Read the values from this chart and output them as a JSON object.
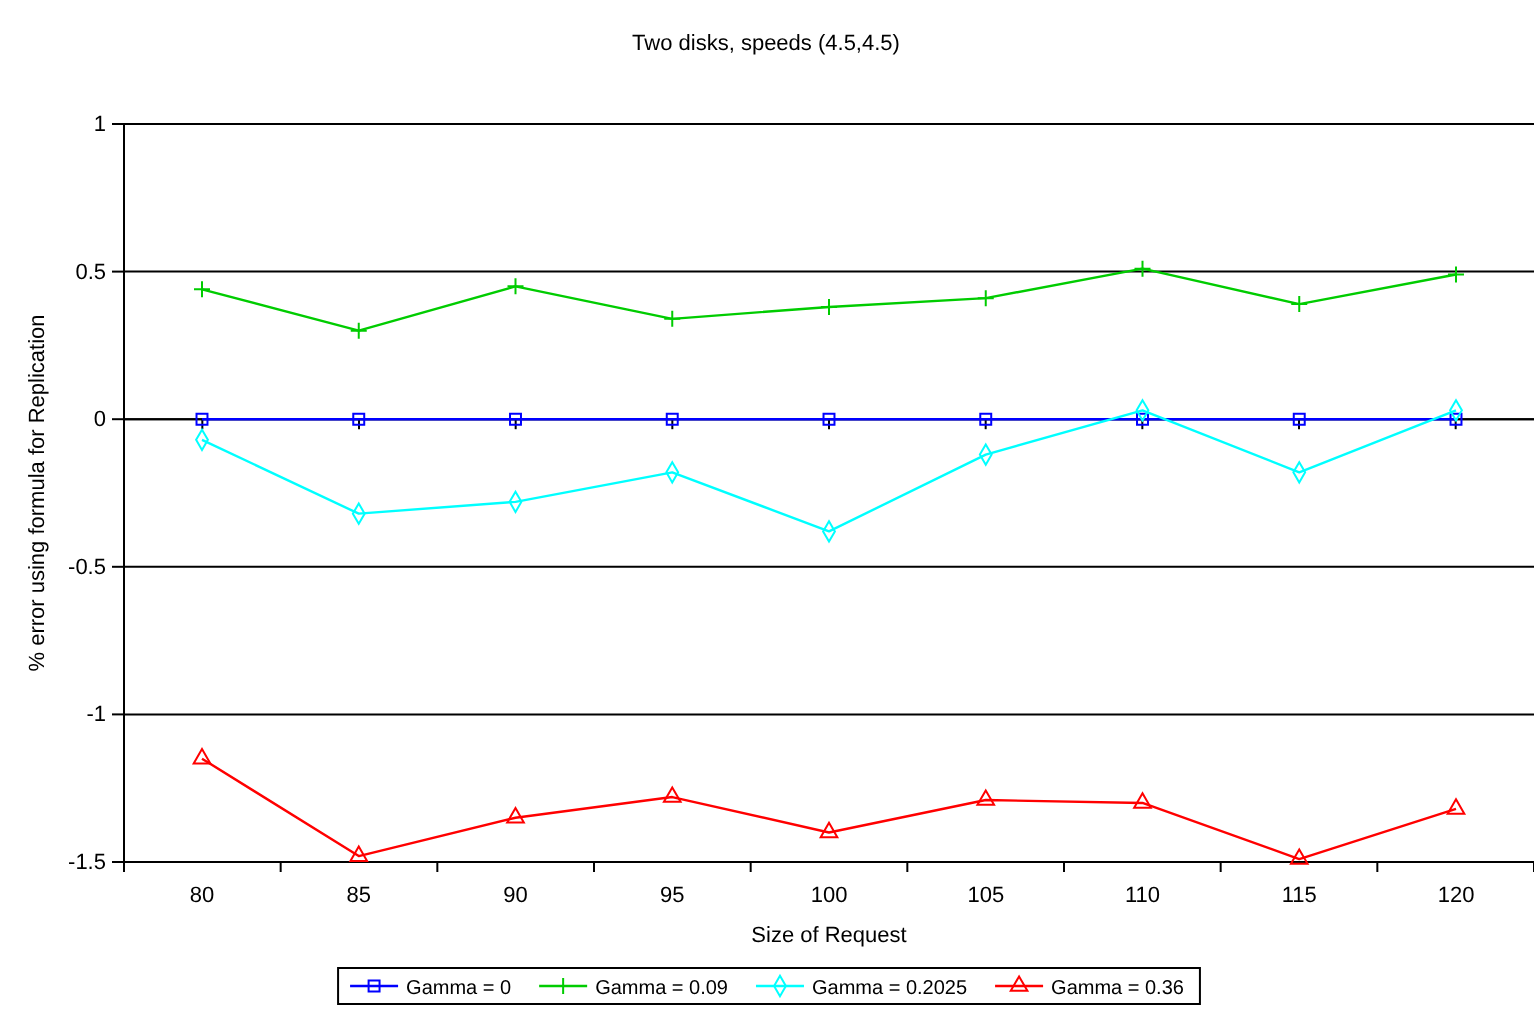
{
  "chart_data": {
    "type": "line",
    "title": "Two disks, speeds (4.5,4.5)",
    "xlabel": "Size of Request",
    "ylabel": "% error using formula for Replication",
    "categories": [
      "80",
      "85",
      "90",
      "95",
      "100",
      "105",
      "110",
      "115",
      "120"
    ],
    "series": [
      {
        "name": "Gamma = 0",
        "color": "#0000ff",
        "marker": "square",
        "values": [
          0,
          0,
          0,
          0,
          0,
          0,
          0,
          0,
          0
        ]
      },
      {
        "name": "Gamma = 0.09",
        "color": "#00cc00",
        "marker": "cross",
        "values": [
          0.44,
          0.3,
          0.45,
          0.34,
          0.38,
          0.41,
          0.51,
          0.39,
          0.49
        ]
      },
      {
        "name": "Gamma = 0.2025",
        "color": "#00ffff",
        "marker": "diamond",
        "values": [
          -0.07,
          -0.32,
          -0.28,
          -0.18,
          -0.38,
          -0.12,
          0.03,
          -0.18,
          0.03
        ]
      },
      {
        "name": "Gamma = 0.36",
        "color": "#ff0000",
        "marker": "triangle",
        "values": [
          -1.15,
          -1.48,
          -1.35,
          -1.28,
          -1.4,
          -1.29,
          -1.3,
          -1.49,
          -1.32
        ]
      }
    ],
    "ylim": [
      -1.5,
      1
    ],
    "yticks": [
      -1.5,
      -1,
      -0.5,
      0,
      0.5,
      1
    ],
    "grid": "y",
    "legend": "bottom"
  }
}
